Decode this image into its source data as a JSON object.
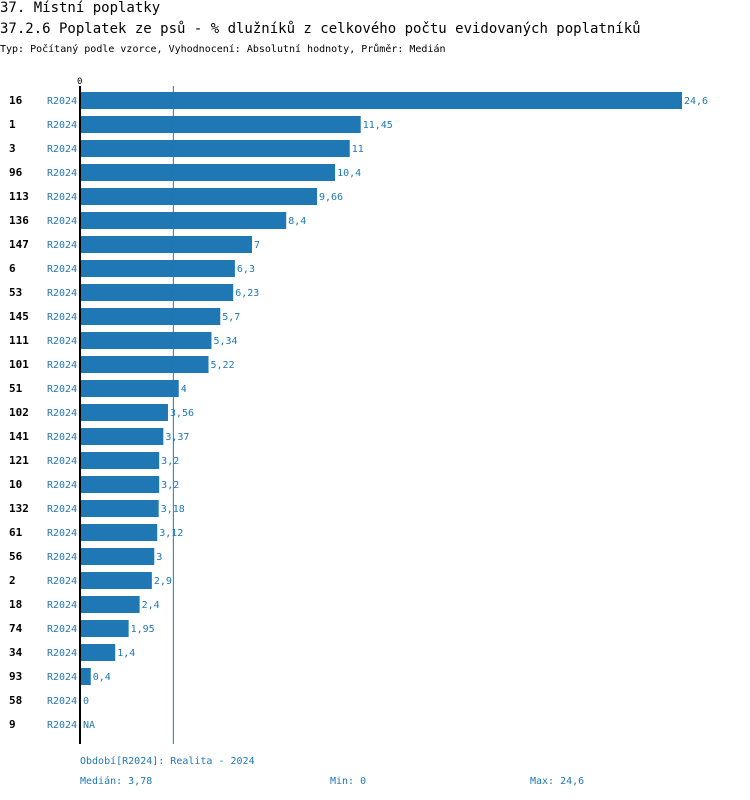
{
  "header": {
    "title": "37. Místní poplatky",
    "subtitle": "37.2.6 Poplatek ze psů - % dlužníků z celkového počtu evidovaných poplatníků",
    "info": "Typ: Počítaný podle vzorce, Vyhodnocení: Absolutní hodnoty, Průměr: Medián"
  },
  "chart_data": {
    "type": "bar",
    "orientation": "horizontal",
    "axis_zero_label": "0",
    "period_label": "R2024",
    "categories": [
      "16",
      "1",
      "3",
      "96",
      "113",
      "136",
      "147",
      "6",
      "53",
      "145",
      "111",
      "101",
      "51",
      "102",
      "141",
      "121",
      "10",
      "132",
      "61",
      "56",
      "2",
      "18",
      "74",
      "34",
      "93",
      "58",
      "9"
    ],
    "values": [
      24.6,
      11.45,
      11,
      10.4,
      9.66,
      8.4,
      7,
      6.3,
      6.23,
      5.7,
      5.34,
      5.22,
      4,
      3.56,
      3.37,
      3.2,
      3.2,
      3.18,
      3.12,
      3,
      2.9,
      2.4,
      1.95,
      1.4,
      0.4,
      0,
      null
    ],
    "value_labels": [
      "24,6",
      "11,45",
      "11",
      "10,4",
      "9,66",
      "8,4",
      "7",
      "6,3",
      "6,23",
      "5,7",
      "5,34",
      "5,22",
      "4",
      "3,56",
      "3,37",
      "3,2",
      "3,2",
      "3,18",
      "3,12",
      "3",
      "2,9",
      "2,4",
      "1,95",
      "1,4",
      "0,4",
      "0",
      "NA"
    ],
    "median": 3.78,
    "xlim": [
      0,
      24.6
    ],
    "bar_color": "#1f77b4",
    "grid": false
  },
  "footer": {
    "period": "Období[R2024]: Realita - 2024",
    "median": "Medián: 3,78",
    "min": "Min: 0",
    "max": "Max: 24,6"
  }
}
